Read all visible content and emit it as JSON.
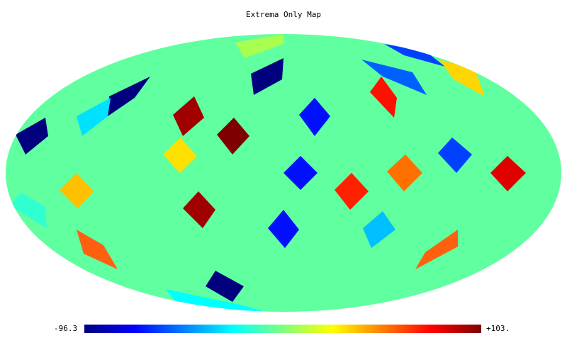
{
  "title": "Extrema Only Map",
  "colorbar": {
    "min_label": "-96.3",
    "max_label": "+103.",
    "colors": [
      "#00007f",
      "#0000ff",
      "#007fff",
      "#00ffff",
      "#7fff7f",
      "#ffff00",
      "#ff7f00",
      "#ff0000",
      "#7f0000"
    ]
  },
  "map": {
    "projection": "mollweide",
    "background_color": "#60ff9f"
  }
}
